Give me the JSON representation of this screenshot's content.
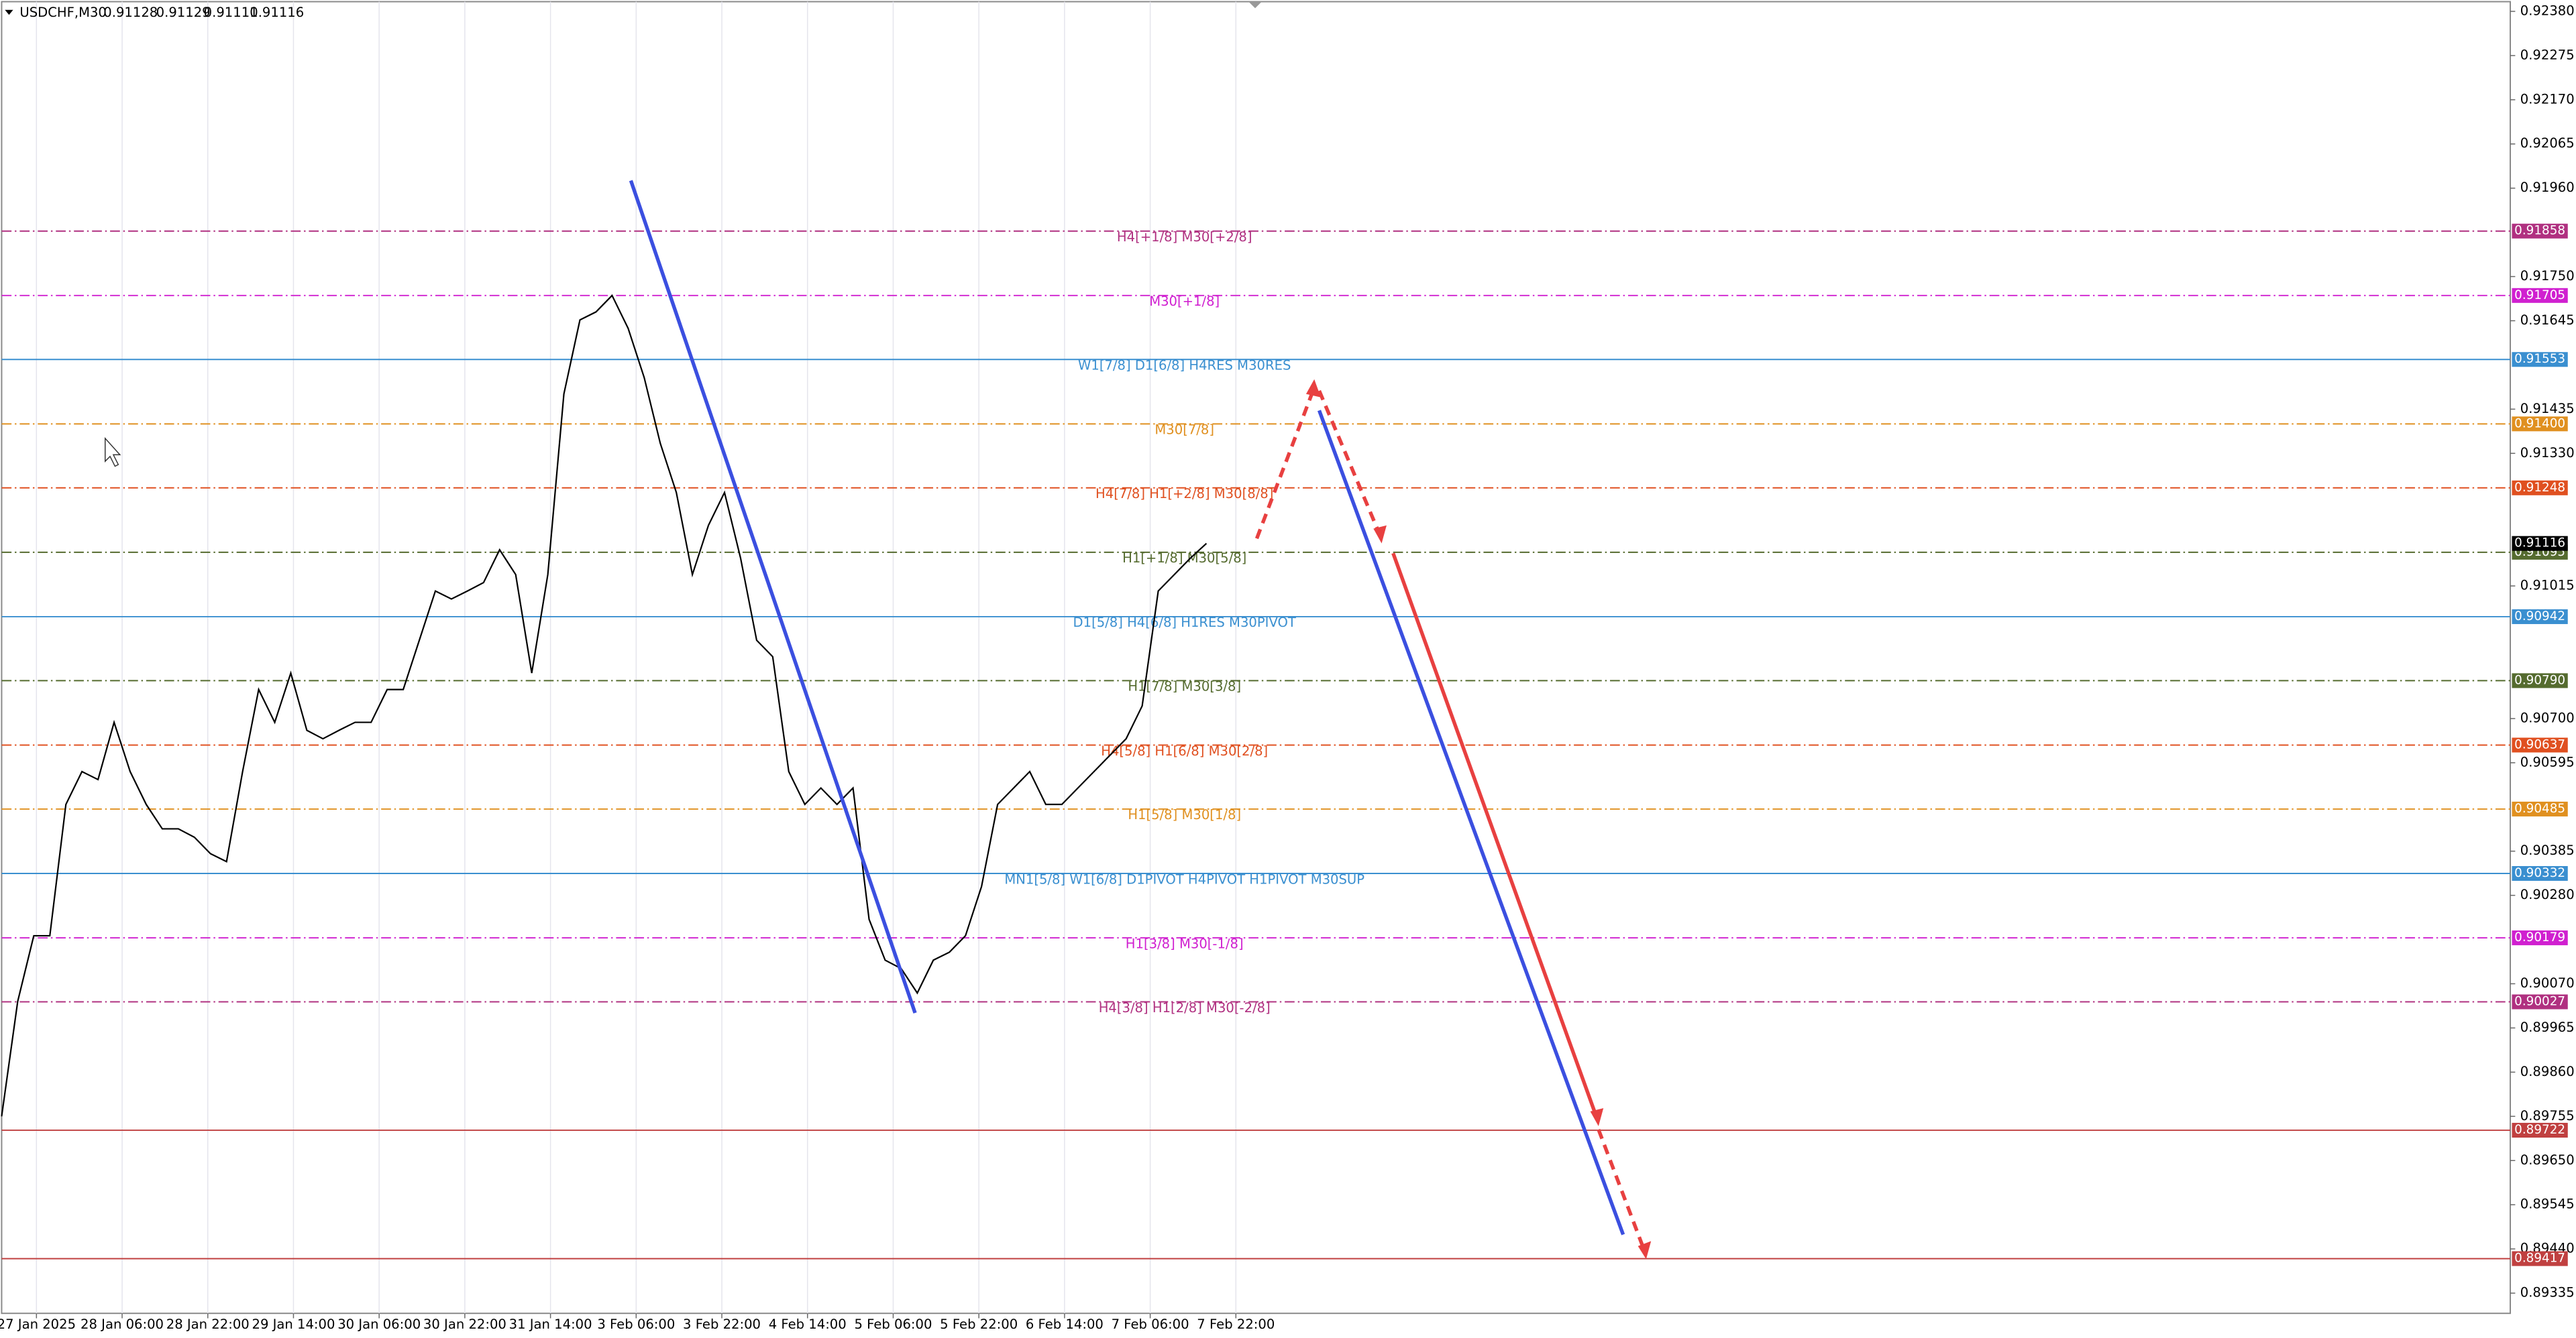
{
  "chart_data": {
    "type": "line",
    "title": "USDCHF,M30",
    "ohlc": [
      0.91128,
      0.91129,
      0.91111,
      0.91116
    ],
    "color": "#000000",
    "x": [
      0,
      6,
      12,
      18,
      24,
      30,
      36,
      42,
      48,
      54,
      60,
      66,
      72,
      78,
      84,
      90,
      96,
      102,
      108,
      114,
      120,
      126,
      132,
      138,
      144,
      150,
      156,
      162,
      168,
      174,
      180,
      186,
      192,
      198,
      204,
      210,
      216,
      222,
      228,
      234,
      240,
      246,
      252,
      258,
      264,
      270,
      276,
      282,
      288,
      294,
      300,
      306,
      312,
      318,
      324,
      330,
      336,
      342,
      348,
      354,
      360,
      366,
      372,
      378,
      384,
      390,
      396,
      402,
      408,
      414,
      420,
      426,
      432,
      438,
      444,
      450
    ],
    "values": [
      0.89755,
      0.90028,
      0.90184,
      0.90184,
      0.90496,
      0.90574,
      0.90555,
      0.90691,
      0.90574,
      0.90496,
      0.90438,
      0.90438,
      0.90418,
      0.90379,
      0.9036,
      0.90574,
      0.90769,
      0.90691,
      0.90808,
      0.90672,
      0.90652,
      0.90672,
      0.90691,
      0.90691,
      0.90769,
      0.90769,
      0.90886,
      0.91003,
      0.90984,
      0.91003,
      0.91023,
      0.91101,
      0.91042,
      0.90808,
      0.91042,
      0.91471,
      0.91647,
      0.91666,
      0.91705,
      0.91627,
      0.9151,
      0.91354,
      0.91237,
      0.91042,
      0.91159,
      0.91237,
      0.91081,
      0.90886,
      0.90847,
      0.90574,
      0.90496,
      0.90535,
      0.90496,
      0.90535,
      0.90223,
      0.90126,
      0.90106,
      0.90048,
      0.90126,
      0.90145,
      0.90184,
      0.90301,
      0.90496,
      0.90535,
      0.90574,
      0.90496,
      0.90496,
      0.90535,
      0.90574,
      0.90613,
      0.90652,
      0.9073,
      0.91003,
      0.91042,
      0.91081,
      0.91116
    ],
    "xlim": [
      0,
      937
    ],
    "xticks": [
      {
        "value": 13,
        "label": "27 Jan 2025"
      },
      {
        "value": 45,
        "label": "28 Jan 06:00"
      },
      {
        "value": 77,
        "label": "28 Jan 22:00"
      },
      {
        "value": 109,
        "label": "29 Jan 14:00"
      },
      {
        "value": 141,
        "label": "30 Jan 06:00"
      },
      {
        "value": 173,
        "label": "30 Jan 22:00"
      },
      {
        "value": 205,
        "label": "31 Jan 14:00"
      },
      {
        "value": 237,
        "label": "3 Feb 06:00"
      },
      {
        "value": 269,
        "label": "3 Feb 22:00"
      },
      {
        "value": 301,
        "label": "4 Feb 14:00"
      },
      {
        "value": 333,
        "label": "5 Feb 06:00"
      },
      {
        "value": 365,
        "label": "5 Feb 22:00"
      },
      {
        "value": 397,
        "label": "6 Feb 14:00"
      },
      {
        "value": 429,
        "label": "7 Feb 06:00"
      },
      {
        "value": 461,
        "label": "7 Feb 22:00"
      }
    ],
    "ylim": [
      0.89287,
      0.92403
    ],
    "yticks": [
      {
        "value": 0.9238,
        "label": "0.92380"
      },
      0.92275,
      {
        "value": 0.9217,
        "label": "0.92170"
      },
      0.92065,
      {
        "value": 0.9196,
        "label": "0.91960"
      },
      {
        "value": 0.9175,
        "label": "0.91750"
      },
      0.91645,
      0.91435,
      {
        "value": 0.9133,
        "label": "0.91330"
      },
      0.91015,
      {
        "value": 0.907,
        "label": "0.90700"
      },
      0.90595,
      0.90385,
      {
        "value": 0.9028,
        "label": "0.90280"
      },
      {
        "value": 0.9007,
        "label": "0.90070"
      },
      0.89965,
      {
        "value": 0.8986,
        "label": "0.89860"
      },
      0.89755,
      {
        "value": 0.8965,
        "label": "0.89650"
      },
      0.89545,
      {
        "value": 0.8944,
        "label": "0.89440"
      },
      0.89335
    ],
    "grid": true,
    "current_price": 0.91116,
    "levels": [
      {
        "value": 0.91858,
        "label": "H4[+1/8] M30[+2/8]",
        "color": "#b03080",
        "style": "dashdot"
      },
      {
        "value": 0.91705,
        "label": "M30[+1/8]",
        "color": "#d020d0",
        "style": "dashdot"
      },
      {
        "value": 0.91553,
        "label": "W1[7/8] D1[6/8] H4RES M30RES",
        "color": "#3a8fd0",
        "style": "solid"
      },
      {
        "value": 0.914,
        "value_label": "0.91400",
        "label": "M30[7/8]",
        "color": "#e09020",
        "style": "dashdot"
      },
      {
        "value": 0.91248,
        "label": "H4[7/8] H1[+2/8] M30[8/8]",
        "color": "#e05020",
        "style": "dashdot"
      },
      {
        "value": 0.91095,
        "label": "H1[+1/8] M30[5/8]",
        "color": "#556b2f",
        "style": "dashdot"
      },
      {
        "value": 0.90942,
        "label": "D1[5/8] H4[6/8] H1RES M30PIVOT",
        "color": "#3a8fd0",
        "style": "solid"
      },
      {
        "value": 0.9079,
        "value_label": "0.90790",
        "label": "H1[7/8] M30[3/8]",
        "color": "#556b2f",
        "style": "dashdot"
      },
      {
        "value": 0.90637,
        "label": "H4[5/8] H1[6/8] M30[2/8]",
        "color": "#e05020",
        "style": "dashdot"
      },
      {
        "value": 0.90485,
        "label": "H1[5/8] M30[1/8]",
        "color": "#e09020",
        "style": "dashdot"
      },
      {
        "value": 0.90332,
        "label": "MN1[5/8] W1[6/8] D1PIVOT H4PIVOT H1PIVOT M30SUP",
        "color": "#3a8fd0",
        "style": "solid"
      },
      {
        "value": 0.90179,
        "label": "H1[3/8] M30[-1/8]",
        "color": "#d020d0",
        "style": "dashdot"
      },
      {
        "value": 0.90027,
        "label": "H4[3/8] H1[2/8] M30[-2/8]",
        "color": "#b03080",
        "style": "dashdot"
      },
      {
        "value": 0.89722,
        "color": "#c04040",
        "style": "solid"
      },
      {
        "value": 0.89417,
        "color": "#c04040",
        "style": "solid"
      }
    ]
  }
}
